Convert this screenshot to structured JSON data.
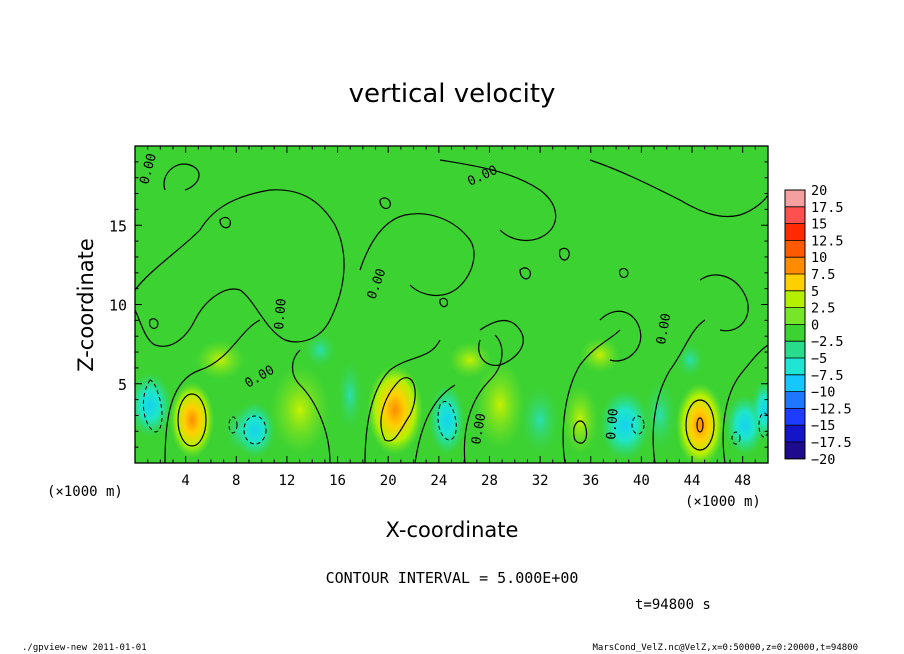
{
  "chart_data": {
    "type": "heatmap",
    "title": "vertical velocity",
    "xlabel": "X-coordinate",
    "ylabel": "Z-coordinate",
    "x_unit_label": "(×1000 m)",
    "y_unit_label": "(×1000 m)",
    "xlim": [
      0,
      50
    ],
    "ylim": [
      0,
      20
    ],
    "x_ticks": [
      4,
      8,
      12,
      16,
      20,
      24,
      28,
      32,
      36,
      40,
      44,
      48
    ],
    "y_ticks": [
      5,
      10,
      15
    ],
    "contour_label": "0.00",
    "contour_interval_text": "CONTOUR INTERVAL = 5.000E+00",
    "time_text": "t=94800 s",
    "colorbar": {
      "labels": [
        "20",
        "17.5",
        "15",
        "12.5",
        "10",
        "7.5",
        "5",
        "2.5",
        "0",
        "−2.5",
        "−5",
        "−7.5",
        "−10",
        "−12.5",
        "−15",
        "−17.5",
        "−20"
      ],
      "colors": [
        "#f4a0a0",
        "#ff5050",
        "#ff2a00",
        "#ff5a00",
        "#ff8c00",
        "#ffd000",
        "#b4f000",
        "#78e628",
        "#3cd232",
        "#28dc8c",
        "#1ee6d2",
        "#14c8ff",
        "#1e78ff",
        "#1e3cff",
        "#1414c8",
        "#1e0a8c",
        "#7814b4"
      ]
    },
    "features": [
      {
        "kind": "updraft",
        "x": 4.5,
        "z": 2.5
      },
      {
        "kind": "downdraft",
        "x": 1.2,
        "z": 3.5
      },
      {
        "kind": "downdraft",
        "x": 9.5,
        "z": 2.2
      },
      {
        "kind": "updraft",
        "x": 21.0,
        "z": 3.0
      },
      {
        "kind": "downdraft",
        "x": 24.5,
        "z": 2.5
      },
      {
        "kind": "downdraft",
        "x": 38.5,
        "z": 2.5
      },
      {
        "kind": "updraft",
        "x": 44.5,
        "z": 2.5
      },
      {
        "kind": "downdraft",
        "x": 47.5,
        "z": 2.0
      }
    ]
  },
  "footer": {
    "left": "./gpview-new   2011-01-01",
    "right": "MarsCond_VelZ.nc@VelZ,x=0:50000,z=0:20000,t=94800"
  }
}
